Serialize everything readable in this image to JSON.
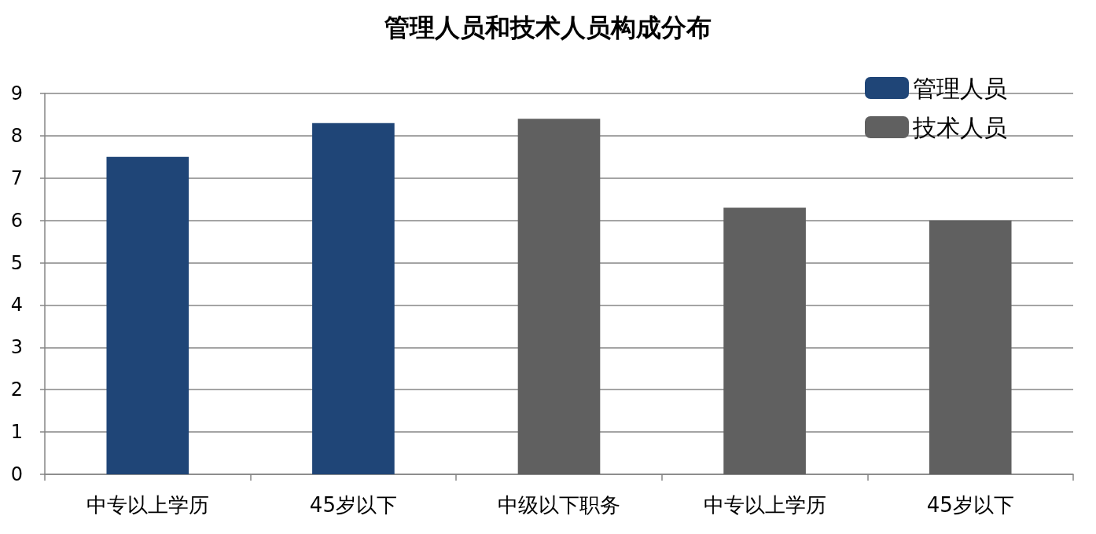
{
  "chart_data": {
    "type": "bar",
    "title": "管理人员和技术人员构成分布",
    "categories": [
      "中专以上学历",
      "45岁以下",
      "中级以下职务",
      "中专以上学历",
      "45岁以下"
    ],
    "series": [
      {
        "name": "管理人员",
        "color": "#1f4577",
        "values": [
          7.5,
          8.3,
          null,
          null,
          null
        ]
      },
      {
        "name": "技术人员",
        "color": "#606060",
        "values": [
          null,
          null,
          8.4,
          6.3,
          6.0
        ]
      }
    ],
    "ylim": [
      0,
      9
    ],
    "yticks": [
      0,
      1,
      2,
      3,
      4,
      5,
      6,
      7,
      8,
      9
    ],
    "grid": "y",
    "legend": "top right"
  }
}
